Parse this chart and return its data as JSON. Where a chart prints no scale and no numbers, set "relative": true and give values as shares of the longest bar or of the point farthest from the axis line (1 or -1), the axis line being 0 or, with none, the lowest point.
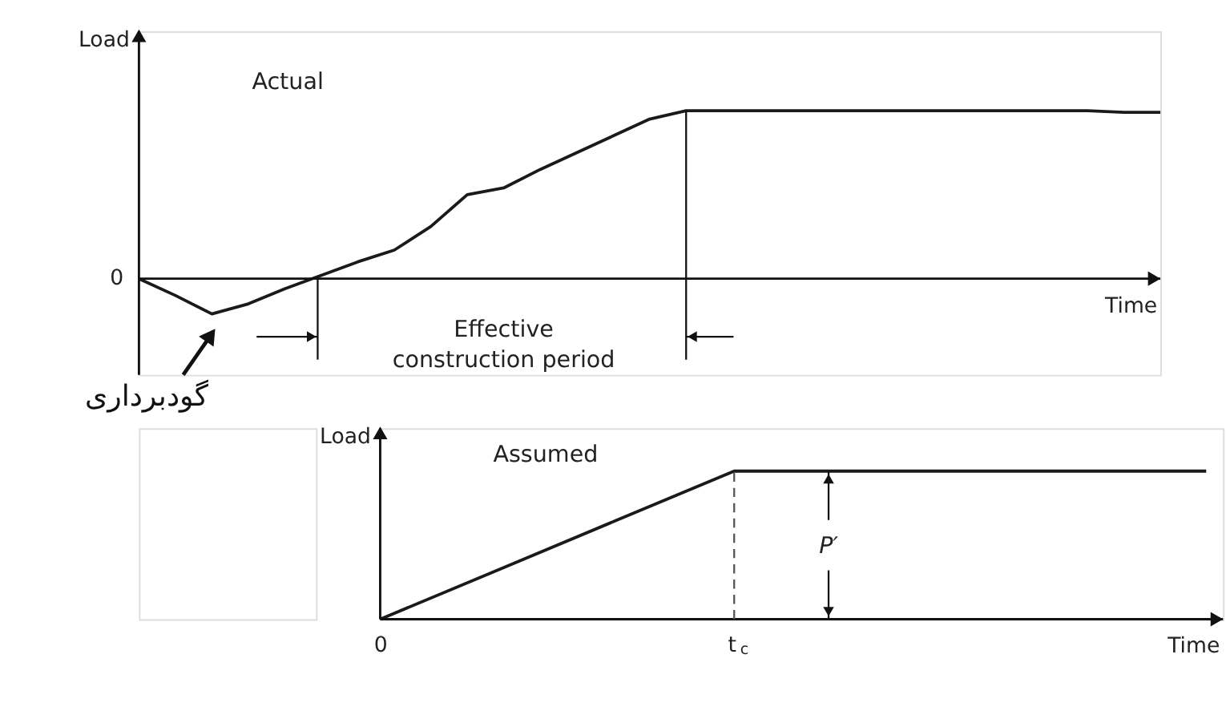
{
  "chart_data": [
    {
      "type": "line",
      "relative": true,
      "title": "Actual",
      "xlabel": "Time",
      "ylabel": "Load",
      "tick_labels": false,
      "legend": false,
      "marker": "none",
      "line_style": "solid",
      "categories": [
        null,
        null,
        null,
        null,
        null,
        null,
        null,
        null,
        null,
        null,
        null,
        null,
        null,
        null,
        null,
        null,
        null,
        null,
        null,
        null,
        null,
        null,
        null,
        null,
        null,
        null,
        null,
        null,
        null
      ],
      "values": [
        0,
        -0.1,
        -0.21,
        -0.15,
        -0.06,
        0.02,
        0.1,
        0.17,
        0.31,
        0.5,
        0.54,
        0.65,
        0.75,
        0.85,
        0.95,
        1,
        1,
        1,
        1,
        1,
        1,
        1,
        1,
        1,
        1,
        1,
        1,
        0.99,
        0.99
      ],
      "color": "#1a1a1a",
      "annotations": [
        "0",
        "گودبرداری",
        "Effective construction period"
      ]
    },
    {
      "type": "line",
      "relative": true,
      "title": "Assumed",
      "xlabel": "Time",
      "ylabel": "Load",
      "tick_labels": "x",
      "legend": false,
      "marker": "none",
      "line_style": "solid",
      "categories": [
        "0",
        null,
        null,
        "t$_{c}$",
        null,
        null,
        null,
        null
      ],
      "values": [
        0,
        0.333,
        0.667,
        1,
        1,
        1,
        1,
        1
      ],
      "color": "#1a1a1a",
      "ref_lines": [
        {
          "axis": "x",
          "value": "t$_{c}$",
          "line_style": "dashed",
          "color": "#555555"
        }
      ],
      "annotations": [
        "P′"
      ]
    }
  ]
}
